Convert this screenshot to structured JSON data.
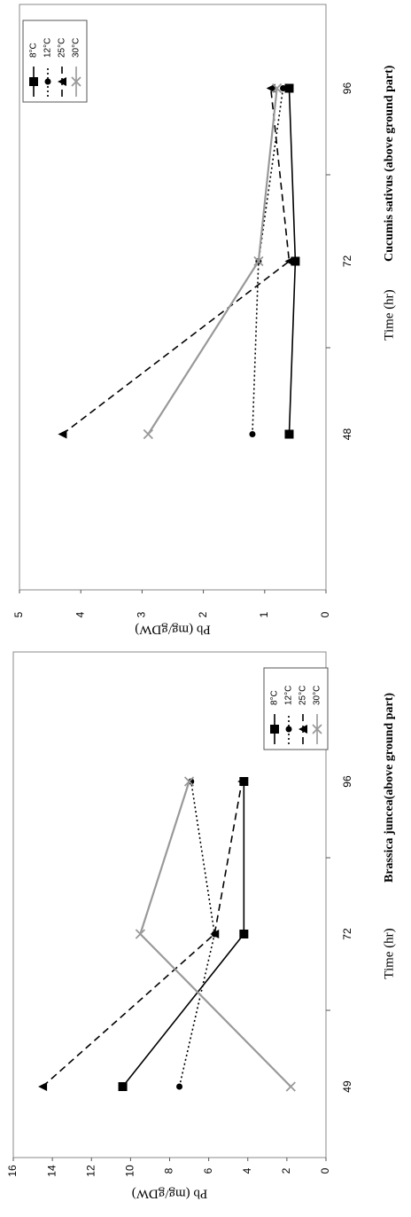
{
  "chart_data": [
    {
      "type": "line",
      "title": "Cucumis sativus (above ground part)",
      "x_label": "Time (hr)",
      "y_label": "Pb (mg/gDW)",
      "categories": [
        "48",
        "72",
        "96"
      ],
      "ylim": [
        0,
        5
      ],
      "yticks": [
        0,
        1,
        2,
        3,
        4,
        5
      ],
      "series": [
        {
          "name": "8°C",
          "color": "#000000",
          "style": "solid",
          "marker": "square",
          "values": [
            0.6,
            0.5,
            0.6
          ]
        },
        {
          "name": "12°C",
          "color": "#000000",
          "style": "dotted",
          "marker": "circle",
          "values": [
            1.2,
            1.1,
            0.7
          ]
        },
        {
          "name": "25°C",
          "color": "#000000",
          "style": "dashed",
          "marker": "triangle",
          "values": [
            4.3,
            0.6,
            0.9
          ]
        },
        {
          "name": "30°C",
          "color": "#999999",
          "style": "solid",
          "marker": "cross",
          "values": [
            2.9,
            1.1,
            0.8
          ]
        }
      ]
    },
    {
      "type": "line",
      "title": "Brassica juncea(above ground part)",
      "x_label": "Time (hr)",
      "y_label": "Pb (mg/gDW)",
      "categories": [
        "49",
        "72",
        "96"
      ],
      "ylim": [
        0,
        16
      ],
      "yticks": [
        0,
        2,
        4,
        6,
        8,
        10,
        12,
        14,
        16
      ],
      "series": [
        {
          "name": "8°C",
          "color": "#000000",
          "style": "solid",
          "marker": "square",
          "values": [
            10.4,
            4.2,
            4.2
          ]
        },
        {
          "name": "12°C",
          "color": "#000000",
          "style": "dotted",
          "marker": "circle",
          "values": [
            7.5,
            5.7,
            6.9
          ]
        },
        {
          "name": "25°C",
          "color": "#000000",
          "style": "dashed",
          "marker": "triangle",
          "values": [
            14.5,
            5.7,
            4.3
          ]
        },
        {
          "name": "30°C",
          "color": "#999999",
          "style": "solid",
          "marker": "cross",
          "values": [
            1.8,
            9.5,
            7.0
          ]
        }
      ]
    }
  ]
}
